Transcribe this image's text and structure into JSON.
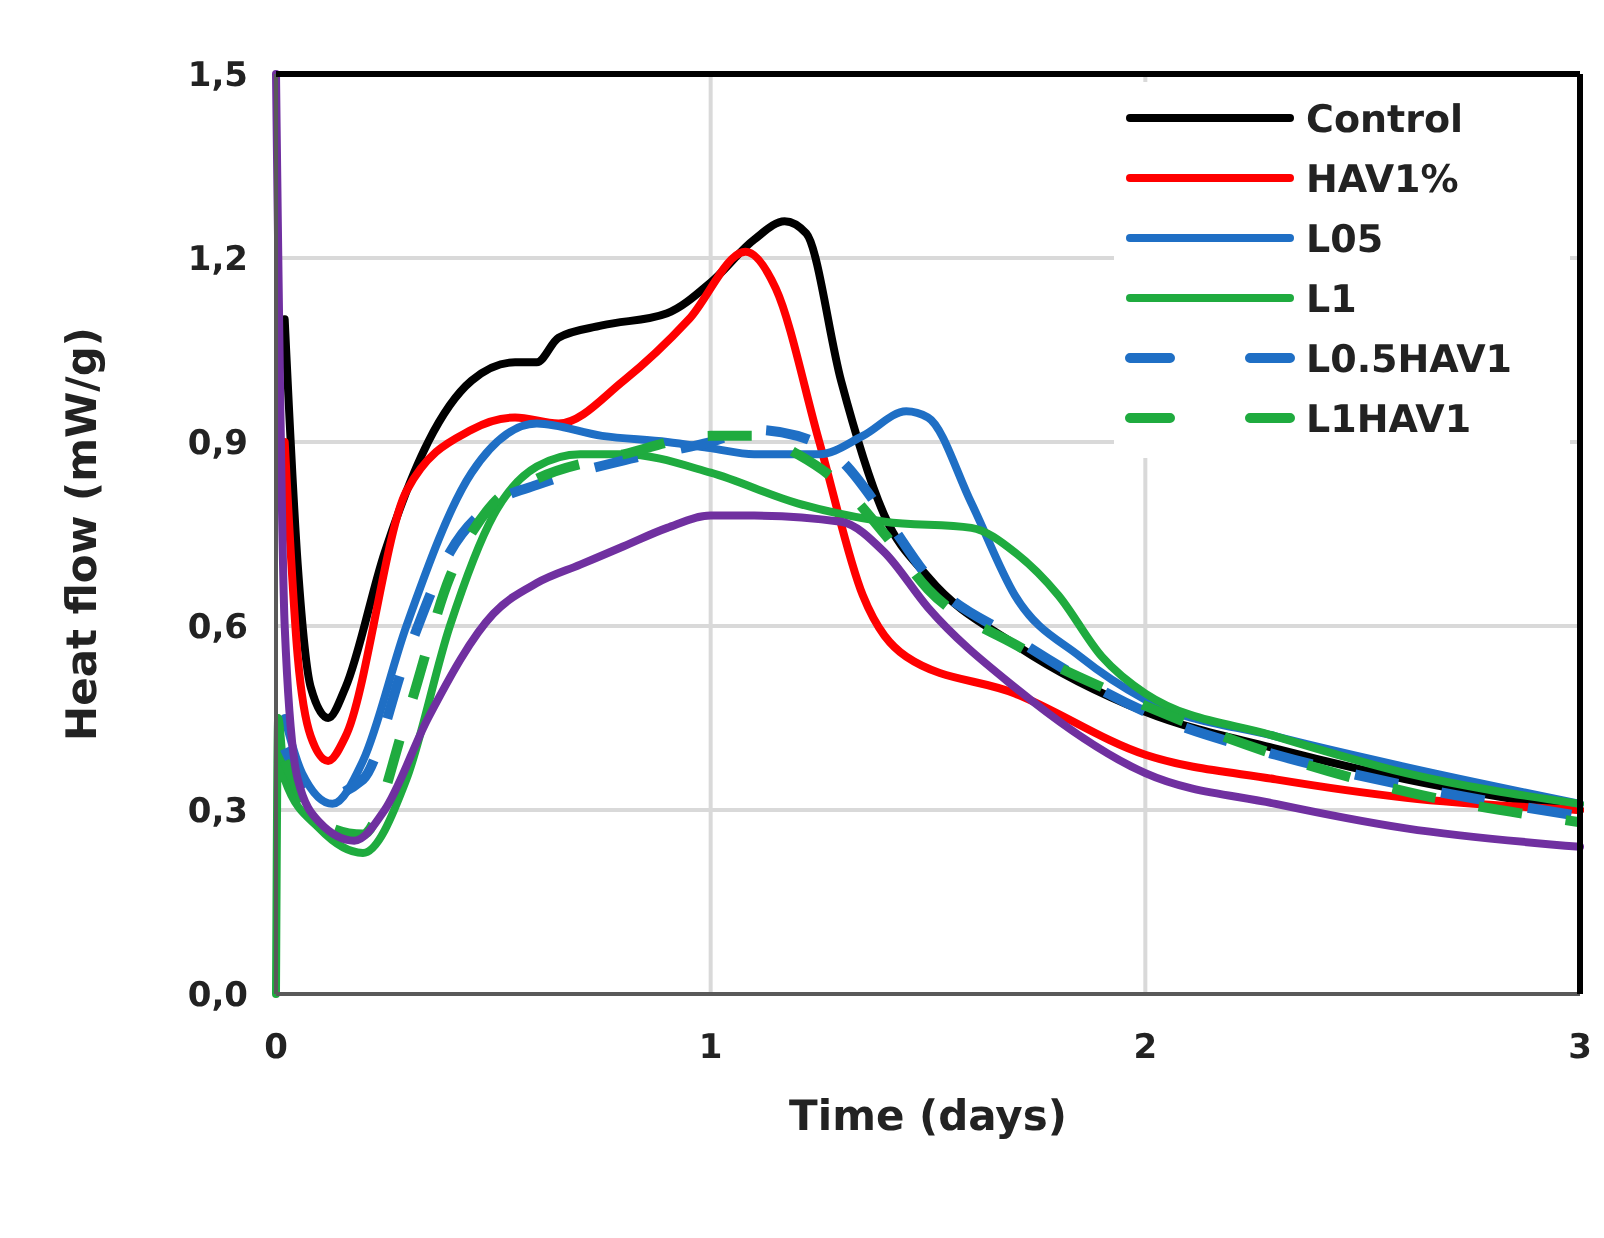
{
  "chart_data": {
    "type": "line",
    "xlabel": "Time (days)",
    "ylabel": "Heat flow (mW/g)",
    "xlim": [
      0,
      3
    ],
    "xticks": [
      0,
      1,
      2,
      3
    ],
    "ylim": [
      0,
      1.5
    ],
    "yticks": [
      {
        "value": 0,
        "label": "0,0"
      },
      {
        "value": 0.3,
        "label": "0,3"
      },
      {
        "value": 0.6,
        "label": "0,6"
      },
      {
        "value": 0.9,
        "label": "0,9"
      },
      {
        "value": 1.2,
        "label": "1,2"
      },
      {
        "value": 1.5,
        "label": "1,5"
      }
    ],
    "grid": true,
    "legend": "top right",
    "series": [
      {
        "name": "Control",
        "color": "#000000",
        "line_style": "solid",
        "x": [
          0.02,
          0.05,
          0.08,
          0.12,
          0.16,
          0.25,
          0.35,
          0.45,
          0.55,
          0.6,
          0.65,
          0.75,
          0.9,
          1.0,
          1.1,
          1.17,
          1.22,
          1.3,
          1.4,
          1.5,
          1.7,
          2.0,
          2.3,
          2.6,
          3.0
        ],
        "values": [
          1.1,
          0.7,
          0.5,
          0.45,
          0.5,
          0.72,
          0.9,
          1.0,
          1.03,
          1.03,
          1.07,
          1.09,
          1.11,
          1.16,
          1.23,
          1.26,
          1.24,
          1.0,
          0.78,
          0.68,
          0.57,
          0.46,
          0.4,
          0.35,
          0.3
        ]
      },
      {
        "name": "HAV1%",
        "color": "#ff0000",
        "line_style": "solid",
        "x": [
          0.02,
          0.05,
          0.08,
          0.12,
          0.16,
          0.3,
          0.45,
          0.55,
          0.65,
          0.8,
          0.95,
          1.08,
          1.15,
          1.25,
          1.35,
          1.45,
          1.7,
          2.0,
          2.3,
          2.6,
          3.0
        ],
        "values": [
          0.9,
          0.55,
          0.42,
          0.38,
          0.42,
          0.82,
          0.92,
          0.94,
          0.93,
          1.0,
          1.1,
          1.21,
          1.15,
          0.9,
          0.65,
          0.55,
          0.49,
          0.39,
          0.35,
          0.32,
          0.3
        ]
      },
      {
        "name": "L05",
        "color": "#1f6fc5",
        "line_style": "solid",
        "x": [
          0.02,
          0.06,
          0.13,
          0.2,
          0.3,
          0.45,
          0.6,
          0.75,
          0.9,
          1.0,
          1.1,
          1.25,
          1.35,
          1.45,
          1.5,
          1.6,
          1.7,
          1.85,
          2.0,
          2.3,
          2.6,
          3.0
        ],
        "values": [
          0.45,
          0.36,
          0.31,
          0.38,
          0.6,
          0.85,
          0.93,
          0.91,
          0.9,
          0.89,
          0.88,
          0.88,
          0.91,
          0.95,
          0.94,
          0.8,
          0.65,
          0.55,
          0.48,
          0.42,
          0.37,
          0.31
        ]
      },
      {
        "name": "L1",
        "color": "#1fab3f",
        "line_style": "solid",
        "x": [
          0.0,
          0.005,
          0.02,
          0.1,
          0.2,
          0.3,
          0.4,
          0.5,
          0.6,
          0.7,
          0.8,
          1.0,
          1.2,
          1.4,
          1.6,
          1.7,
          1.8,
          1.9,
          2.0,
          2.3,
          2.6,
          3.0
        ],
        "values": [
          0.0,
          0.45,
          0.35,
          0.27,
          0.23,
          0.35,
          0.6,
          0.78,
          0.86,
          0.88,
          0.88,
          0.85,
          0.8,
          0.77,
          0.76,
          0.72,
          0.65,
          0.55,
          0.49,
          0.42,
          0.36,
          0.31
        ]
      },
      {
        "name": "L0.5HAV1",
        "color": "#1f6fc5",
        "line_style": "dashed",
        "x": [
          0.02,
          0.1,
          0.2,
          0.3,
          0.4,
          0.5,
          0.6,
          0.8,
          1.0,
          1.1,
          1.2,
          1.3,
          1.4,
          1.5,
          1.7,
          2.0,
          2.3,
          2.6,
          3.0
        ],
        "values": [
          0.4,
          0.32,
          0.35,
          0.55,
          0.72,
          0.8,
          0.83,
          0.87,
          0.9,
          0.92,
          0.91,
          0.87,
          0.78,
          0.68,
          0.58,
          0.46,
          0.39,
          0.34,
          0.29
        ]
      },
      {
        "name": "L1HAV1",
        "color": "#1fab3f",
        "line_style": "dashed",
        "x": [
          0.02,
          0.1,
          0.2,
          0.3,
          0.4,
          0.5,
          0.6,
          0.8,
          1.0,
          1.1,
          1.2,
          1.3,
          1.4,
          1.5,
          1.7,
          2.0,
          2.3,
          2.6,
          3.0
        ],
        "values": [
          0.38,
          0.28,
          0.26,
          0.45,
          0.68,
          0.8,
          0.84,
          0.88,
          0.91,
          0.91,
          0.88,
          0.83,
          0.75,
          0.66,
          0.57,
          0.47,
          0.39,
          0.33,
          0.28
        ]
      },
      {
        "color": "#7030a0",
        "line_style": "solid",
        "x": [
          0.0,
          0.02,
          0.05,
          0.1,
          0.18,
          0.25,
          0.35,
          0.5,
          0.6,
          0.7,
          0.8,
          0.9,
          1.0,
          1.1,
          1.3,
          1.4,
          1.5,
          1.7,
          2.0,
          2.3,
          2.6,
          3.0
        ],
        "values": [
          1.5,
          0.6,
          0.35,
          0.28,
          0.25,
          0.3,
          0.45,
          0.62,
          0.67,
          0.7,
          0.73,
          0.76,
          0.78,
          0.78,
          0.77,
          0.72,
          0.63,
          0.5,
          0.36,
          0.31,
          0.27,
          0.24
        ]
      }
    ]
  }
}
